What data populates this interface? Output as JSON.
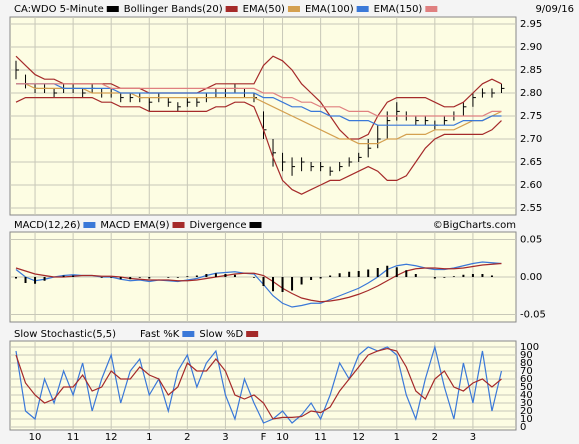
{
  "chart_data": [
    {
      "type": "ohlc",
      "date": "9/09/16",
      "ylim": [
        2.55,
        2.95
      ],
      "yticks": [
        2.55,
        {
          "value": 2.6,
          "label": "2.60"
        },
        2.65,
        {
          "value": 2.7,
          "label": "2.70"
        },
        2.75,
        {
          "value": 2.8,
          "label": "2.80"
        },
        2.85,
        {
          "value": 2.9,
          "label": "2.90"
        },
        2.95
      ],
      "grid": true,
      "series": [
        {
          "name": "CA:WDO 5-Minute",
          "color": "#000000",
          "values": [
            2.85,
            2.82,
            2.81,
            2.81,
            2.8,
            2.81,
            2.81,
            2.8,
            2.81,
            2.8,
            2.8,
            2.79,
            2.79,
            2.79,
            2.78,
            2.79,
            2.78,
            2.77,
            2.78,
            2.78,
            2.79,
            2.8,
            2.8,
            2.81,
            2.8,
            2.79,
            2.72,
            2.67,
            2.65,
            2.64,
            2.65,
            2.64,
            2.64,
            2.63,
            2.64,
            2.65,
            2.66,
            2.68,
            2.7,
            2.74,
            2.76,
            2.75,
            2.74,
            2.74,
            2.73,
            2.74,
            2.75,
            2.77,
            2.79,
            2.8,
            2.8,
            2.81
          ],
          "high": [
            2.87,
            2.84,
            2.82,
            2.82,
            2.81,
            2.82,
            2.82,
            2.81,
            2.82,
            2.81,
            2.81,
            2.8,
            2.8,
            2.8,
            2.79,
            2.8,
            2.79,
            2.78,
            2.79,
            2.79,
            2.8,
            2.81,
            2.81,
            2.82,
            2.81,
            2.8,
            2.76,
            2.7,
            2.67,
            2.66,
            2.66,
            2.65,
            2.65,
            2.64,
            2.65,
            2.66,
            2.67,
            2.7,
            2.73,
            2.76,
            2.78,
            2.76,
            2.75,
            2.75,
            2.74,
            2.75,
            2.76,
            2.78,
            2.8,
            2.81,
            2.81,
            2.82
          ],
          "low": [
            2.83,
            2.81,
            2.8,
            2.8,
            2.79,
            2.8,
            2.8,
            2.79,
            2.8,
            2.79,
            2.79,
            2.78,
            2.78,
            2.78,
            2.76,
            2.78,
            2.77,
            2.76,
            2.77,
            2.77,
            2.78,
            2.79,
            2.79,
            2.8,
            2.79,
            2.78,
            2.7,
            2.64,
            2.63,
            2.62,
            2.63,
            2.63,
            2.63,
            2.62,
            2.63,
            2.64,
            2.65,
            2.66,
            2.68,
            2.7,
            2.74,
            2.74,
            2.73,
            2.73,
            2.72,
            2.73,
            2.74,
            2.75,
            2.77,
            2.79,
            2.79,
            2.8
          ]
        },
        {
          "name": "Bollinger Bands(20)",
          "color": "#a52a2a",
          "upper": [
            2.88,
            2.86,
            2.84,
            2.83,
            2.83,
            2.82,
            2.82,
            2.82,
            2.82,
            2.82,
            2.82,
            2.81,
            2.81,
            2.81,
            2.8,
            2.8,
            2.8,
            2.8,
            2.8,
            2.8,
            2.81,
            2.82,
            2.82,
            2.82,
            2.82,
            2.82,
            2.86,
            2.88,
            2.87,
            2.85,
            2.82,
            2.8,
            2.78,
            2.75,
            2.72,
            2.7,
            2.7,
            2.71,
            2.75,
            2.78,
            2.79,
            2.79,
            2.79,
            2.79,
            2.78,
            2.77,
            2.77,
            2.78,
            2.8,
            2.82,
            2.83,
            2.82
          ],
          "lower": [
            2.78,
            2.79,
            2.79,
            2.79,
            2.79,
            2.79,
            2.79,
            2.79,
            2.79,
            2.78,
            2.78,
            2.77,
            2.77,
            2.77,
            2.76,
            2.76,
            2.76,
            2.76,
            2.76,
            2.76,
            2.76,
            2.77,
            2.77,
            2.78,
            2.78,
            2.77,
            2.72,
            2.66,
            2.61,
            2.59,
            2.58,
            2.59,
            2.6,
            2.61,
            2.61,
            2.62,
            2.63,
            2.64,
            2.63,
            2.61,
            2.61,
            2.62,
            2.65,
            2.68,
            2.7,
            2.71,
            2.71,
            2.71,
            2.71,
            2.71,
            2.72,
            2.74
          ]
        },
        {
          "name": "EMA(50)",
          "color": "#d4a050",
          "values": [
            2.82,
            2.82,
            2.81,
            2.81,
            2.81,
            2.81,
            2.81,
            2.81,
            2.8,
            2.8,
            2.8,
            2.8,
            2.8,
            2.79,
            2.79,
            2.79,
            2.79,
            2.79,
            2.79,
            2.79,
            2.79,
            2.79,
            2.79,
            2.79,
            2.79,
            2.79,
            2.78,
            2.77,
            2.76,
            2.75,
            2.74,
            2.73,
            2.72,
            2.71,
            2.7,
            2.7,
            2.69,
            2.69,
            2.69,
            2.7,
            2.7,
            2.71,
            2.71,
            2.71,
            2.72,
            2.72,
            2.72,
            2.73,
            2.74,
            2.74,
            2.75,
            2.76
          ]
        },
        {
          "name": "EMA(100)",
          "color": "#3a78d8",
          "values": [
            2.82,
            2.82,
            2.82,
            2.82,
            2.82,
            2.81,
            2.81,
            2.81,
            2.81,
            2.81,
            2.81,
            2.8,
            2.8,
            2.8,
            2.8,
            2.8,
            2.8,
            2.8,
            2.8,
            2.8,
            2.8,
            2.8,
            2.8,
            2.8,
            2.8,
            2.8,
            2.79,
            2.79,
            2.78,
            2.77,
            2.77,
            2.76,
            2.76,
            2.75,
            2.75,
            2.74,
            2.74,
            2.74,
            2.73,
            2.73,
            2.73,
            2.73,
            2.73,
            2.73,
            2.73,
            2.73,
            2.73,
            2.74,
            2.74,
            2.74,
            2.75,
            2.75
          ]
        },
        {
          "name": "EMA(150)",
          "color": "#e08080",
          "values": [
            2.82,
            2.82,
            2.82,
            2.82,
            2.82,
            2.82,
            2.82,
            2.82,
            2.82,
            2.82,
            2.81,
            2.81,
            2.81,
            2.81,
            2.81,
            2.81,
            2.81,
            2.81,
            2.81,
            2.81,
            2.81,
            2.81,
            2.81,
            2.81,
            2.81,
            2.81,
            2.8,
            2.8,
            2.79,
            2.79,
            2.78,
            2.78,
            2.77,
            2.77,
            2.77,
            2.76,
            2.76,
            2.76,
            2.75,
            2.75,
            2.75,
            2.75,
            2.75,
            2.75,
            2.75,
            2.75,
            2.75,
            2.75,
            2.75,
            2.75,
            2.76,
            2.76
          ]
        }
      ]
    },
    {
      "type": "macd",
      "copyright": "©BigCharts.com",
      "ylim": [
        -0.06,
        0.06
      ],
      "yticks": [
        0.05,
        {
          "value": 0,
          "label": "0.00"
        },
        -0.05
      ],
      "grid": true,
      "series": [
        {
          "name": "MACD(12,26)",
          "color": "#3a78d8",
          "values": [
            0.01,
            0,
            -0.005,
            -0.003,
            0,
            0.002,
            0.003,
            0.002,
            0.002,
            0,
            0,
            -0.003,
            -0.005,
            -0.004,
            -0.006,
            -0.004,
            -0.005,
            -0.006,
            -0.004,
            -0.002,
            0.002,
            0.005,
            0.006,
            0.007,
            0.005,
            0.004,
            -0.01,
            -0.025,
            -0.035,
            -0.04,
            -0.038,
            -0.035,
            -0.035,
            -0.03,
            -0.025,
            -0.02,
            -0.015,
            -0.008,
            0,
            0.01,
            0.015,
            0.017,
            0.015,
            0.012,
            0.01,
            0.01,
            0.012,
            0.015,
            0.018,
            0.02,
            0.019,
            0.018
          ]
        },
        {
          "name": "MACD EMA(9)",
          "color": "#a52a2a",
          "values": [
            0.012,
            0.008,
            0.004,
            0.002,
            0,
            0,
            0.001,
            0.002,
            0.002,
            0.001,
            0.001,
            0,
            -0.002,
            -0.003,
            -0.004,
            -0.004,
            -0.004,
            -0.005,
            -0.005,
            -0.004,
            -0.002,
            0,
            0.002,
            0.004,
            0.005,
            0.005,
            0.002,
            -0.006,
            -0.015,
            -0.022,
            -0.028,
            -0.031,
            -0.033,
            -0.032,
            -0.03,
            -0.027,
            -0.023,
            -0.018,
            -0.012,
            -0.005,
            0.002,
            0.008,
            0.011,
            0.012,
            0.012,
            0.011,
            0.011,
            0.012,
            0.014,
            0.016,
            0.017,
            0.018
          ]
        },
        {
          "name": "Divergence",
          "color": "#000000",
          "values": [
            -0.002,
            -0.008,
            -0.009,
            -0.005,
            0,
            0.002,
            0.002,
            0,
            0,
            -0.001,
            -0.001,
            -0.003,
            -0.003,
            -0.001,
            -0.002,
            0,
            -0.001,
            -0.001,
            0.001,
            0.002,
            0.004,
            0.005,
            0.004,
            0.003,
            0,
            -0.001,
            -0.012,
            -0.019,
            -0.02,
            -0.018,
            -0.01,
            -0.004,
            -0.002,
            0.002,
            0.005,
            0.007,
            0.008,
            0.01,
            0.012,
            0.015,
            0.013,
            0.009,
            0.004,
            0,
            -0.002,
            -0.001,
            0.001,
            0.003,
            0.004,
            0.004,
            0.002,
            0
          ]
        }
      ]
    },
    {
      "type": "stochastic",
      "title": "Slow Stochastic(5,5)",
      "ylim": [
        0,
        100
      ],
      "yticks": [
        100,
        90,
        80,
        70,
        60,
        50,
        40,
        30,
        20,
        10,
        0
      ],
      "grid": true,
      "categories": [
        null,
        null,
        "10",
        null,
        null,
        null,
        "11",
        null,
        null,
        null,
        "12",
        null,
        null,
        null,
        "1",
        null,
        null,
        null,
        "2",
        null,
        null,
        null,
        "3",
        null,
        null,
        null,
        "F",
        null,
        "10",
        null,
        null,
        null,
        "11",
        null,
        null,
        null,
        "12",
        null,
        null,
        null,
        "1",
        null,
        null,
        null,
        "2",
        null,
        null,
        null,
        "3",
        null,
        null,
        null
      ],
      "series": [
        {
          "name": "Fast %K",
          "color": "#3a78d8",
          "values": [
            95,
            20,
            10,
            60,
            30,
            70,
            40,
            80,
            20,
            60,
            90,
            30,
            70,
            85,
            40,
            60,
            20,
            70,
            90,
            50,
            80,
            95,
            40,
            10,
            60,
            30,
            5,
            10,
            20,
            5,
            15,
            30,
            10,
            40,
            80,
            60,
            90,
            100,
            95,
            100,
            90,
            40,
            10,
            60,
            100,
            50,
            10,
            80,
            30,
            95,
            20,
            70
          ]
        },
        {
          "name": "Slow %D",
          "color": "#a52a2a",
          "values": [
            90,
            55,
            40,
            30,
            35,
            50,
            50,
            65,
            45,
            50,
            70,
            60,
            60,
            75,
            65,
            60,
            40,
            50,
            80,
            70,
            70,
            85,
            70,
            40,
            35,
            40,
            30,
            10,
            12,
            12,
            13,
            20,
            18,
            25,
            45,
            60,
            75,
            90,
            95,
            98,
            95,
            75,
            45,
            35,
            60,
            70,
            50,
            45,
            55,
            60,
            50,
            60
          ]
        }
      ]
    }
  ]
}
